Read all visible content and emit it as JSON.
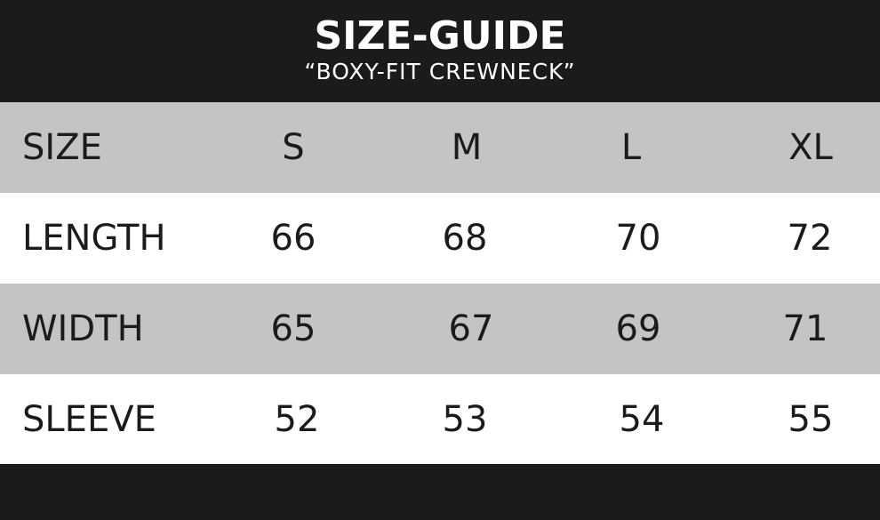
{
  "header": {
    "title": "SIZE-GUIDE",
    "subtitle": "“BOXY-FIT CREWNECK”"
  },
  "colors": {
    "dark": "#1b1b1b",
    "row_gray": "#c4c4c4",
    "row_white": "#ffffff"
  },
  "table": {
    "header": {
      "label": "SIZE",
      "values": [
        "S",
        "M",
        "L",
        "XL"
      ]
    },
    "rows": [
      {
        "label": "LENGTH",
        "values": [
          "66",
          "68",
          "70",
          "72"
        ]
      },
      {
        "label": "WIDTH",
        "values": [
          "65",
          "67",
          "69",
          "71"
        ]
      },
      {
        "label": "SLEEVE",
        "values": [
          "52",
          "53",
          "54",
          "55"
        ]
      }
    ]
  }
}
